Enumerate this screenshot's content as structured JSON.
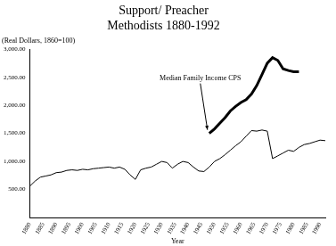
{
  "chart_data": {
    "type": "line",
    "title": [
      "Support/ Preacher",
      "Methodists 1880-1992"
    ],
    "subtitle": "(Real Dollars, 1860=100)",
    "x_label": "Year",
    "annotations": [
      {
        "text": "Median Family Income CPS",
        "x": 1948,
        "y": 1500
      }
    ],
    "x": [
      1880,
      1882,
      1884,
      1886,
      1888,
      1890,
      1892,
      1894,
      1896,
      1898,
      1900,
      1902,
      1904,
      1906,
      1908,
      1910,
      1912,
      1914,
      1916,
      1918,
      1920,
      1922,
      1924,
      1926,
      1928,
      1930,
      1932,
      1934,
      1936,
      1938,
      1940,
      1942,
      1944,
      1946,
      1948,
      1950,
      1952,
      1954,
      1956,
      1958,
      1960,
      1962,
      1964,
      1966,
      1968,
      1970,
      1972,
      1974,
      1976,
      1978,
      1980,
      1982,
      1984,
      1986,
      1988,
      1990,
      1992
    ],
    "series": [
      {
        "name": "Support/ Preacher",
        "color": "#000000",
        "line_style": "solid",
        "values": [
          560,
          650,
          720,
          740,
          760,
          800,
          810,
          840,
          850,
          840,
          860,
          850,
          870,
          880,
          890,
          900,
          880,
          900,
          860,
          760,
          680,
          850,
          880,
          900,
          950,
          1000,
          980,
          880,
          950,
          1000,
          980,
          900,
          830,
          820,
          900,
          1000,
          1050,
          1120,
          1200,
          1280,
          1350,
          1450,
          1550,
          1540,
          1560,
          1540,
          1050,
          1100,
          1150,
          1200,
          1180,
          1250,
          1300,
          1320,
          1350,
          1380,
          1370
        ]
      },
      {
        "name": "Median Family Income CPS",
        "color": "#000000",
        "line_style": "bold",
        "values": [
          null,
          null,
          null,
          null,
          null,
          null,
          null,
          null,
          null,
          null,
          null,
          null,
          null,
          null,
          null,
          null,
          null,
          null,
          null,
          null,
          null,
          null,
          null,
          null,
          null,
          null,
          null,
          null,
          null,
          null,
          null,
          null,
          null,
          null,
          1500,
          1580,
          1680,
          1780,
          1900,
          1980,
          2050,
          2100,
          2200,
          2350,
          2550,
          2750,
          2850,
          2800,
          2650,
          2620,
          2600,
          2600,
          null,
          null,
          null,
          null,
          null
        ]
      }
    ],
    "xlim": [
      1880,
      1992
    ],
    "xticks": [
      1880,
      1885,
      1890,
      1895,
      1900,
      1905,
      1910,
      1915,
      1920,
      1925,
      1930,
      1935,
      1940,
      1945,
      1950,
      1955,
      1960,
      1965,
      1970,
      1975,
      1980,
      1985,
      1990
    ],
    "ylim": [
      0,
      3000
    ],
    "yticks": [
      {
        "value": 500,
        "label": "500.00"
      },
      {
        "value": 1000,
        "label": "1,000.00"
      },
      {
        "value": 1500,
        "label": "1,500.00"
      },
      {
        "value": 2000,
        "label": "2,000.00"
      },
      {
        "value": 2500,
        "label": "2,500.00"
      },
      {
        "value": 3000,
        "label": "3,000.00"
      }
    ],
    "grid": false
  }
}
